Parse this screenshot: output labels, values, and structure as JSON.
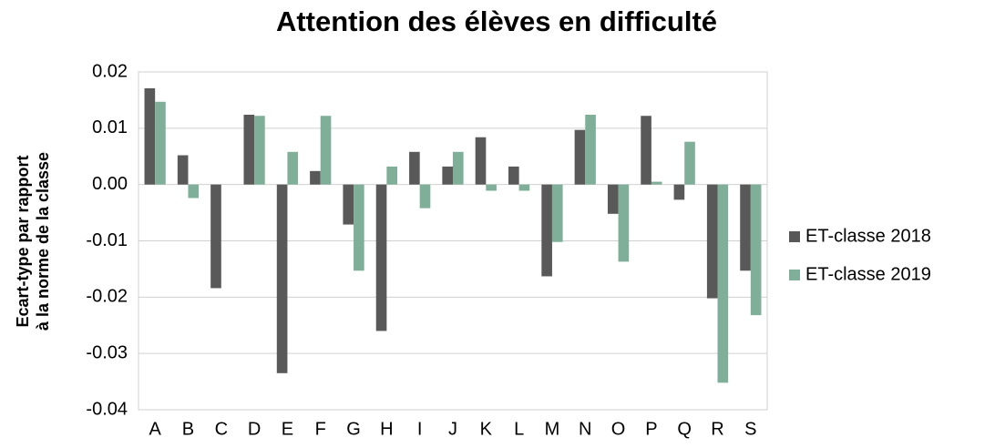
{
  "chart_data": {
    "type": "bar",
    "title": "Attention des élèves en difficulté",
    "ylabel": [
      "Ecart-type par rapport",
      "à la norme de la classe"
    ],
    "categories": [
      "A",
      "B",
      "C",
      "D",
      "E",
      "F",
      "G",
      "H",
      "I",
      "J",
      "K",
      "L",
      "M",
      "N",
      "O",
      "P",
      "Q",
      "R",
      "S"
    ],
    "series": [
      {
        "name": "ET-classe 2018",
        "color": "#595959",
        "values": [
          0.0171,
          0.0052,
          -0.0184,
          0.0124,
          -0.0335,
          0.0024,
          -0.0071,
          -0.026,
          0.0058,
          0.0032,
          0.0084,
          0.0032,
          -0.0163,
          0.0097,
          -0.0052,
          0.0122,
          -0.0027,
          -0.0202,
          -0.0153
        ]
      },
      {
        "name": "ET-classe 2019",
        "color": "#7faf98",
        "values": [
          0.0147,
          -0.0024,
          0,
          0.0122,
          0.0058,
          0.0122,
          -0.0153,
          0.0032,
          -0.0042,
          0.0058,
          -0.0011,
          -0.0011,
          -0.0102,
          0.0124,
          -0.0137,
          0.0005,
          0.0076,
          -0.0352,
          -0.0232
        ]
      }
    ],
    "ylim": [
      -0.04,
      0.02
    ],
    "yticks": [
      -0.04,
      -0.03,
      -0.02,
      -0.01,
      {
        "value": 0,
        "label": "0.00"
      },
      0.01,
      0.02
    ],
    "grid": true,
    "legend": "right"
  }
}
